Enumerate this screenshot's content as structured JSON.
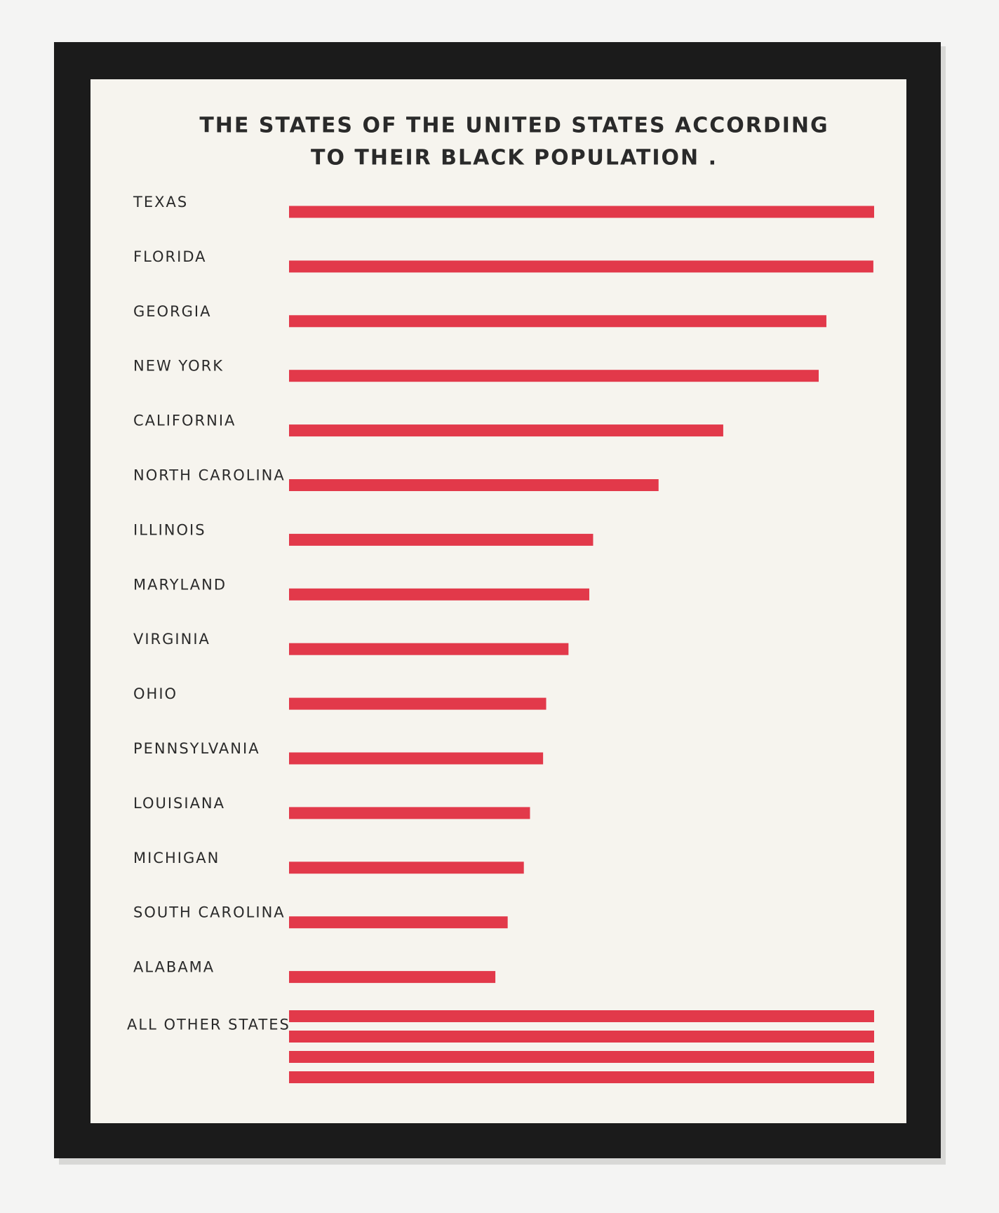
{
  "chart_data": {
    "type": "bar",
    "title": [
      "THE STATES OF THE UNITED STATES ACCORDING",
      "TO THEIR BLACK POPULATION ."
    ],
    "categories": [
      "TEXAS",
      "FLORIDA",
      "GEORGIA",
      "NEW YORK",
      "CALIFORNIA",
      "NORTH CAROLINA",
      "ILLINOIS",
      "MARYLAND",
      "VIRGINIA",
      "OHIO",
      "PENNSYLVANIA",
      "LOUISIANA",
      "MICHIGAN",
      "SOUTH CAROLINA",
      "ALABAMA"
    ],
    "values": [
      760,
      759,
      698,
      688,
      564,
      480,
      395,
      390,
      363,
      334,
      330,
      313,
      305,
      284,
      268
    ],
    "other": {
      "label": "ALL OTHER STATES",
      "values": [
        760,
        760,
        760,
        760
      ]
    },
    "color": "#e0283c",
    "xlim": [
      0,
      760
    ]
  }
}
